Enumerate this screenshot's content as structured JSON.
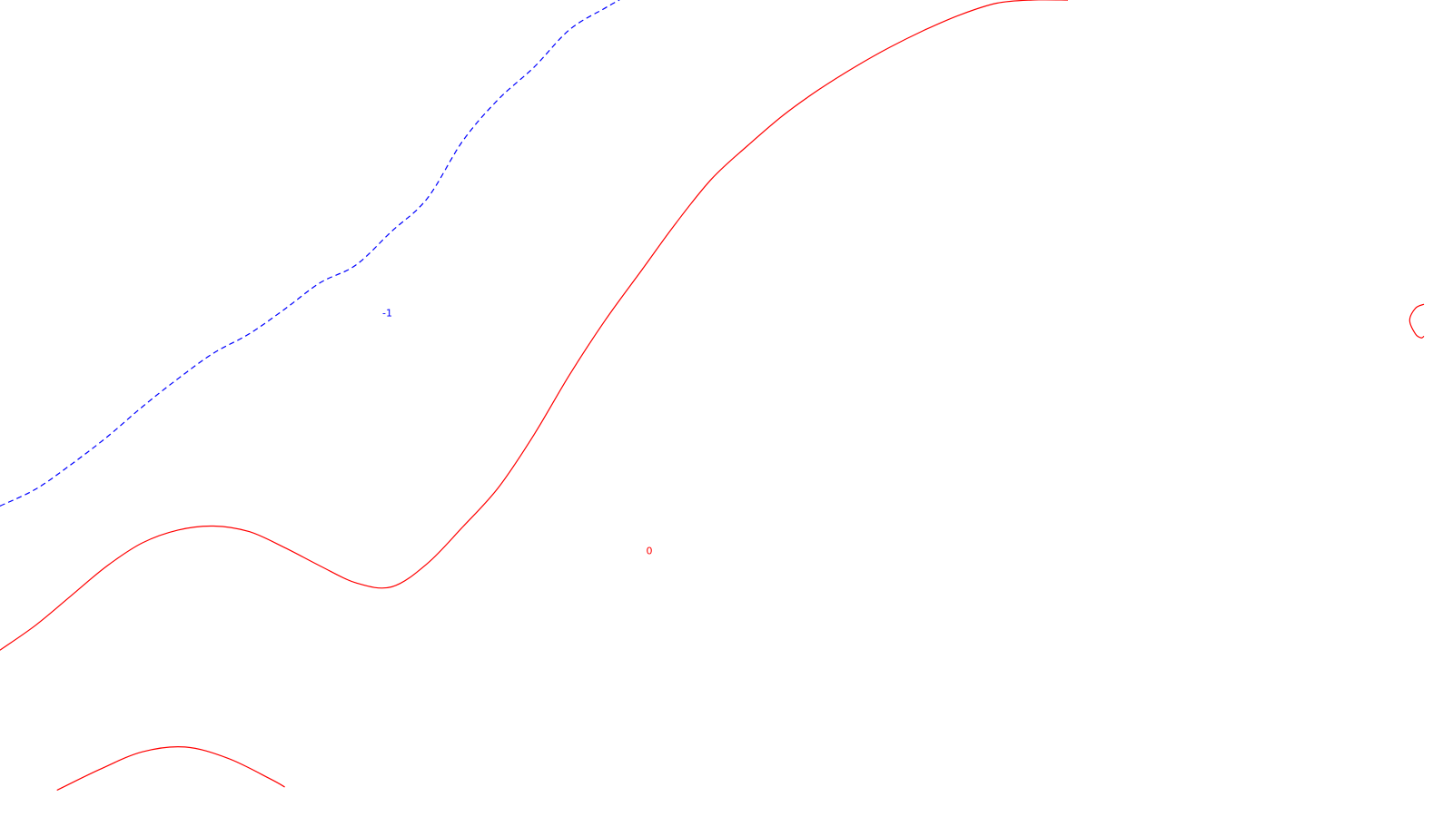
{
  "chart_data": {
    "type": "contour",
    "title": "",
    "xlabel": "",
    "ylabel": "",
    "grid": false,
    "series": [
      {
        "level": "-1",
        "label": "-1",
        "color": "#0000ff",
        "dashed": true,
        "x": [
          0.0,
          0.025,
          0.05,
          0.075,
          0.1,
          0.125,
          0.15,
          0.175,
          0.2,
          0.225,
          0.25,
          0.275,
          0.3,
          0.325,
          0.35,
          0.375,
          0.4,
          0.425,
          0.435
        ],
        "y": [
          0.368,
          0.389,
          0.42,
          0.454,
          0.492,
          0.527,
          0.559,
          0.583,
          0.614,
          0.647,
          0.669,
          0.711,
          0.752,
          0.824,
          0.876,
          0.916,
          0.963,
          0.99,
          1.0
        ]
      },
      {
        "level": "0",
        "label": "0",
        "color": "#ff0000",
        "dashed": false,
        "x": [
          0.0,
          0.025,
          0.05,
          0.075,
          0.1,
          0.125,
          0.15,
          0.175,
          0.2,
          0.225,
          0.25,
          0.275,
          0.3,
          0.325,
          0.35,
          0.375,
          0.4,
          0.425,
          0.45,
          0.475,
          0.5,
          0.525,
          0.55,
          0.575,
          0.6,
          0.625,
          0.65,
          0.675,
          0.7,
          0.725,
          0.75
        ],
        "y": [
          0.188,
          0.219,
          0.256,
          0.293,
          0.322,
          0.338,
          0.343,
          0.336,
          0.316,
          0.293,
          0.272,
          0.267,
          0.296,
          0.342,
          0.391,
          0.457,
          0.532,
          0.6,
          0.661,
          0.722,
          0.777,
          0.818,
          0.856,
          0.888,
          0.916,
          0.941,
          0.963,
          0.982,
          0.996,
          1.0,
          1.0
        ]
      },
      {
        "level": "0",
        "label": "",
        "color": "#ff0000",
        "dashed": false,
        "x": [
          0.04,
          0.07,
          0.1,
          0.13,
          0.16,
          0.19,
          0.2
        ],
        "y": [
          0.013,
          0.039,
          0.061,
          0.067,
          0.053,
          0.027,
          0.017
        ]
      },
      {
        "level": "0",
        "label": "",
        "color": "#ff0000",
        "dashed": false,
        "x": [
          1.0,
          0.994,
          0.99,
          0.994,
          0.998,
          1.0
        ],
        "y": [
          0.62,
          0.615,
          0.6,
          0.583,
          0.578,
          0.58
        ]
      }
    ],
    "labels": [
      {
        "text": "-1",
        "color": "#0000ff",
        "x": 0.272,
        "y": 0.608
      },
      {
        "text": "0",
        "color": "#ff0000",
        "x": 0.456,
        "y": 0.311
      }
    ],
    "xlim": [
      0,
      1
    ],
    "ylim": [
      0,
      1
    ]
  }
}
